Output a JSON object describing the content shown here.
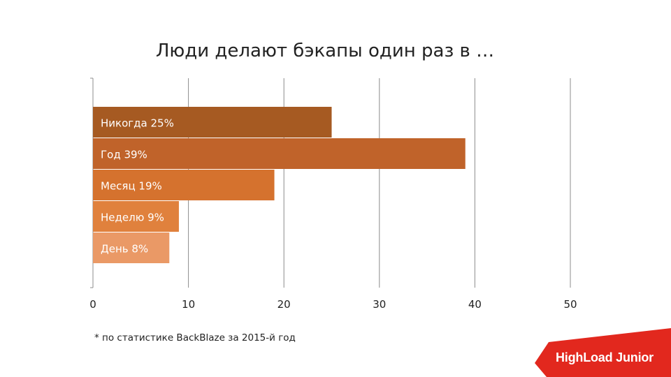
{
  "slide": {
    "title": "Люди делают бэкапы один раз в …",
    "footnote": "* по статистике BackBlaze за 2015-й год",
    "logo_text": "HighLoad Junior"
  },
  "colors": {
    "logo_red": "#e2281e",
    "grid": "#8c8c8c",
    "text": "#222222"
  },
  "chart_data": {
    "type": "bar",
    "orientation": "horizontal",
    "title": "Люди делают бэкапы один раз в …",
    "categories": [
      "Никогда 25%",
      "Год 39%",
      "Месяц 19%",
      "Неделю 9%",
      "День 8%"
    ],
    "values": [
      25,
      39,
      19,
      9,
      8
    ],
    "colors": [
      "#a65a22",
      "#c0632a",
      "#d5722e",
      "#e0813d",
      "#ea9966"
    ],
    "xlim": [
      0,
      50
    ],
    "xticks": [
      0,
      10,
      20,
      30,
      40,
      50
    ],
    "xlabel": "",
    "ylabel": "",
    "grid": true
  }
}
